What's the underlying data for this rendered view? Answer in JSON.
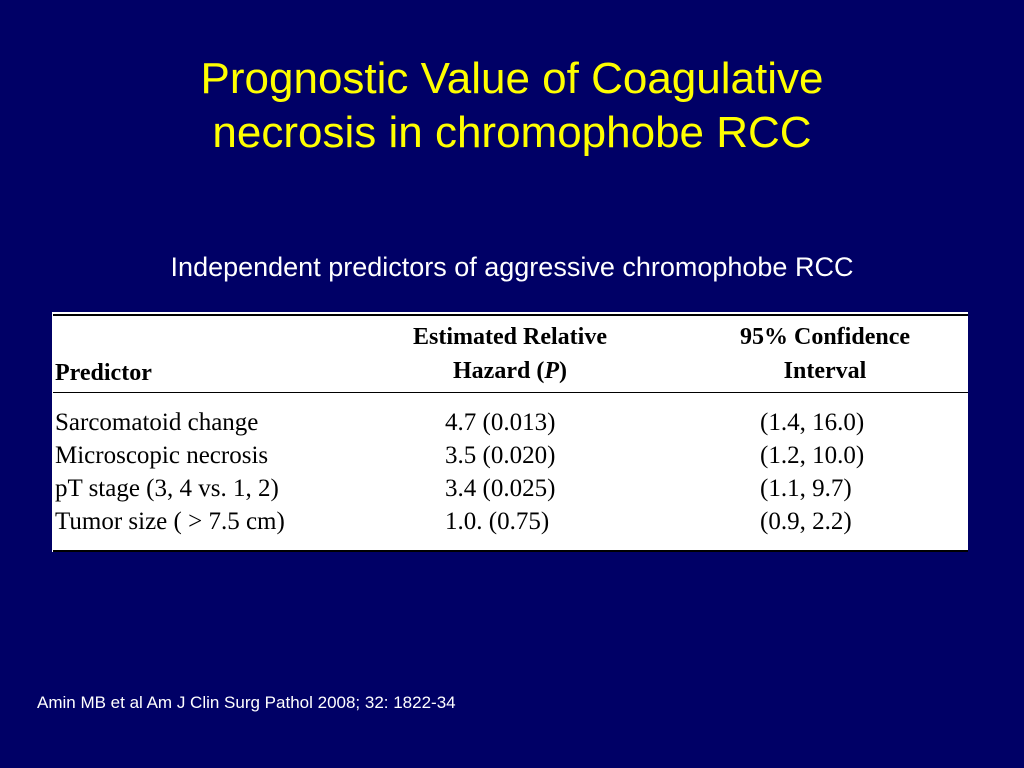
{
  "slide": {
    "title_line1": "Prognostic Value of Coagulative",
    "title_line2": "necrosis in chromophobe RCC",
    "subtitle": "Independent predictors of aggressive chromophobe RCC",
    "citation": "Amin MB et al Am J Clin Surg Pathol 2008; 32: 1822-34"
  },
  "colors": {
    "background": "#000066",
    "title": "#ffff00",
    "text": "#ffffff"
  },
  "table": {
    "headers": {
      "predictor": "Predictor",
      "hazard_line1": "Estimated Relative",
      "hazard_line2": "Hazard (P)",
      "ci_line1": "95% Confidence",
      "ci_line2": "Interval"
    },
    "rows": [
      {
        "predictor": "Sarcomatoid change",
        "hazard": "4.7 (0.013)",
        "ci": "(1.4, 16.0)"
      },
      {
        "predictor": "Microscopic necrosis",
        "hazard": "3.5 (0.020)",
        "ci": "(1.2, 10.0)"
      },
      {
        "predictor": "pT stage (3, 4 vs. 1, 2)",
        "hazard": "3.4 (0.025)",
        "ci": "(1.1, 9.7)"
      },
      {
        "predictor": "Tumor size ( > 7.5 cm)",
        "hazard": "1.0. (0.75)",
        "ci": "(0.9, 2.2)"
      }
    ]
  }
}
